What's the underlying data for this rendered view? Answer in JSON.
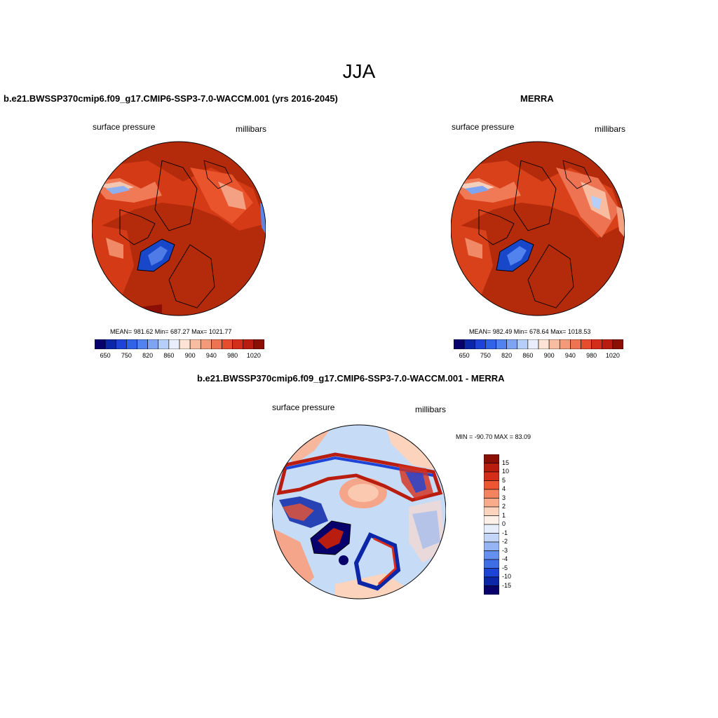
{
  "page": {
    "title": "JJA"
  },
  "panels": [
    {
      "title": "b.e21.BWSSP370cmip6.f09_g17.CMIP6-SSP3-7.0-WACCM.001 (yrs 2016-2045)",
      "variable": "surface pressure",
      "units": "millibars",
      "stats": "MEAN= 981.62  Min= 687.27  Max= 1021.77",
      "colorbar": {
        "tick_labels": [
          "650",
          "750",
          "820",
          "860",
          "900",
          "940",
          "980",
          "1020"
        ],
        "colors": [
          "#08006b",
          "#0b27a8",
          "#1d44d6",
          "#3163e6",
          "#5182ee",
          "#7fa5f2",
          "#b7cff8",
          "#e8eefb",
          "#fde3d4",
          "#f8bca0",
          "#f49a78",
          "#ee7352",
          "#e64d2f",
          "#d42e1a",
          "#b81d10",
          "#8c0f05"
        ]
      }
    },
    {
      "title": "MERRA",
      "variable": "surface pressure",
      "units": "millibars",
      "stats": "MEAN= 982.49  Min= 678.64  Max= 1018.53",
      "colorbar": {
        "tick_labels": [
          "650",
          "750",
          "820",
          "860",
          "900",
          "940",
          "980",
          "1020"
        ],
        "colors": [
          "#08006b",
          "#0b27a8",
          "#1d44d6",
          "#3163e6",
          "#5182ee",
          "#7fa5f2",
          "#b7cff8",
          "#e8eefb",
          "#fde3d4",
          "#f8bca0",
          "#f49a78",
          "#ee7352",
          "#e64d2f",
          "#d42e1a",
          "#b81d10",
          "#8c0f05"
        ]
      }
    },
    {
      "title": "b.e21.BWSSP370cmip6.f09_g17.CMIP6-SSP3-7.0-WACCM.001 - MERRA",
      "variable": "surface pressure",
      "units": "millibars",
      "stats": "MIN = -90.70 MAX =  83.09",
      "colorbar": {
        "tick_labels": [
          "15",
          "10",
          "5",
          "4",
          "3",
          "2",
          "1",
          "0",
          "-1",
          "-2",
          "-3",
          "-4",
          "-5",
          "-10",
          "-15"
        ],
        "colors": [
          "#8c0f05",
          "#b81d10",
          "#d42e1a",
          "#ee5533",
          "#f4845f",
          "#f8ac8c",
          "#fcd4bd",
          "#fdf0e8",
          "#e6eefb",
          "#c3d6f7",
          "#94b4f3",
          "#6690ee",
          "#3f6de6",
          "#1d44d6",
          "#0b27a8",
          "#08006b"
        ]
      }
    }
  ],
  "colors": {
    "land_high": "#cc2f10",
    "ocean_high": "#b42b0c",
    "diff_pos": "#f4a58a",
    "diff_neg": "#c6dbf5"
  }
}
